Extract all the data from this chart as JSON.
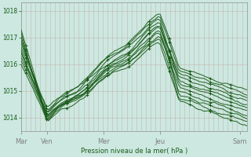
{
  "bg_color": "#cce8e0",
  "grid_major_color": "#b8d4cc",
  "grid_minor_color": "#d4b8b8",
  "line_color": "#1a5c1a",
  "ylabel": "Pression niveau de la mer( hPa )",
  "yticks": [
    1014,
    1015,
    1016,
    1017,
    1018
  ],
  "ylim": [
    1013.5,
    1018.3
  ],
  "xlim": [
    0,
    1
  ],
  "xtick_labels": [
    "Mar",
    "Ven",
    "Mer",
    "Jeu",
    "Sam"
  ],
  "xtick_positions": [
    0.0,
    0.115,
    0.365,
    0.615,
    0.97
  ],
  "n_points": 100,
  "n_lines": 11
}
